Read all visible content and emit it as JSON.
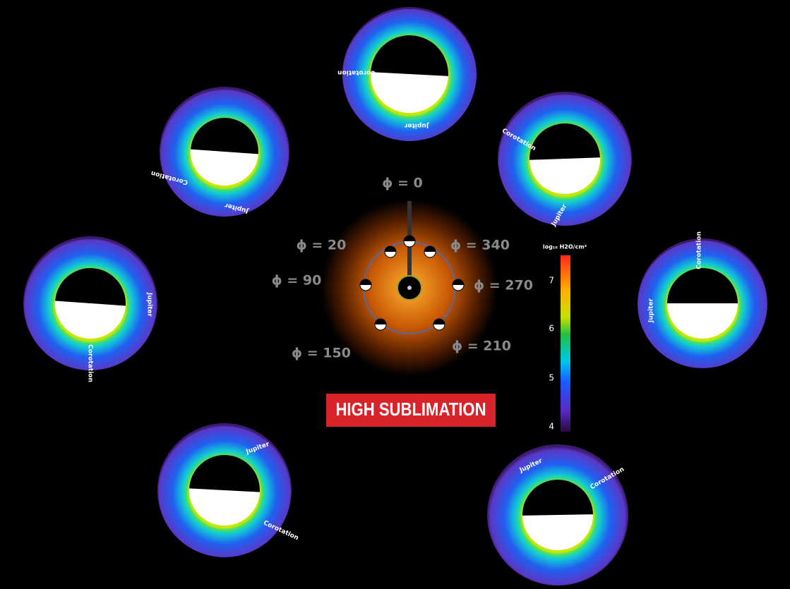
{
  "phase_labels": [
    "ϕ = 0",
    "ϕ = 20",
    "ϕ = 340",
    "ϕ = 90",
    "ϕ = 270",
    "ϕ = 150",
    "ϕ = 210"
  ],
  "banner": "HIGH SUBLIMATION",
  "colorbar": {
    "title": "log₁₀ H2O/cm²",
    "ticks": [
      "7",
      "6",
      "5",
      "4"
    ]
  },
  "panels": [
    {
      "jupiter": "Jupiter",
      "corotation": "Corotation"
    },
    {
      "jupiter": "Jupiter",
      "corotation": "Corotation"
    },
    {
      "jupiter": "Jupiter",
      "corotation": "Corotation"
    },
    {
      "jupiter": "Jupiter",
      "corotation": "Corotation"
    },
    {
      "jupiter": "Jupiter",
      "corotation": "Corotation"
    },
    {
      "jupiter": "Jupiter",
      "corotation": "Corotation"
    },
    {
      "jupiter": "Jupiter",
      "corotation": "Corotation"
    }
  ]
}
